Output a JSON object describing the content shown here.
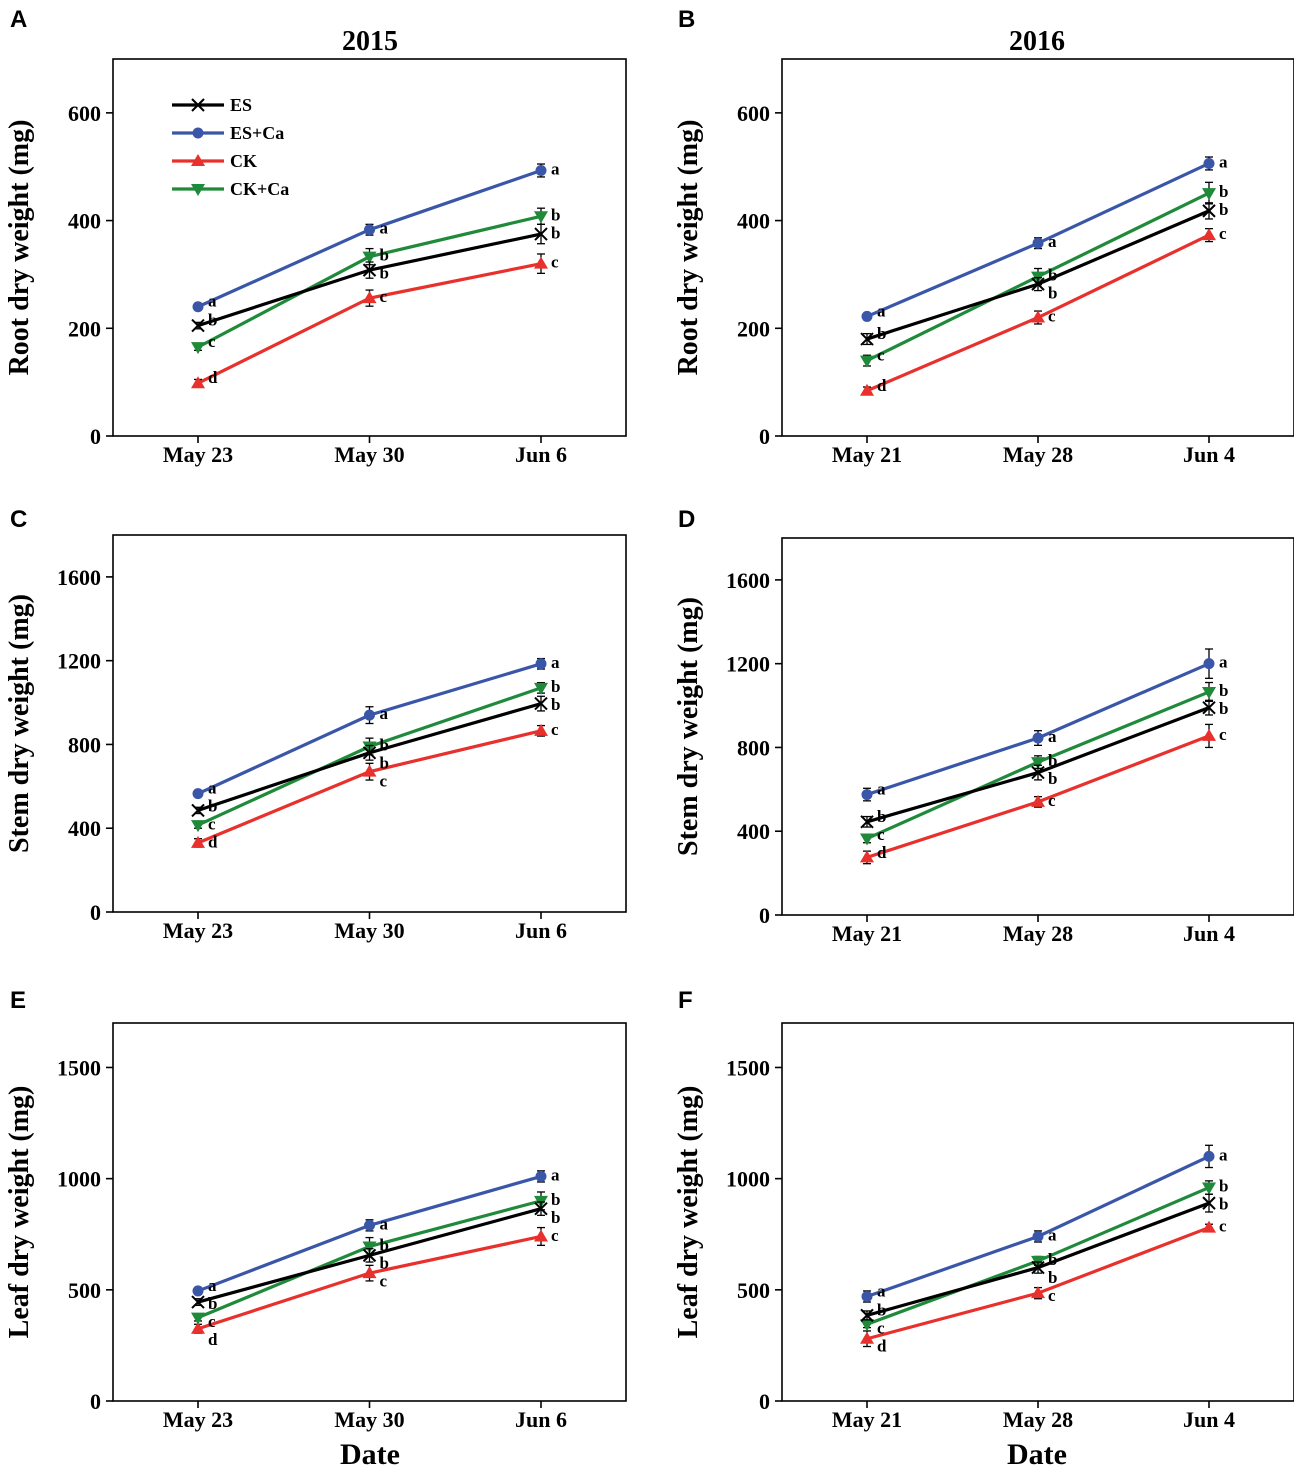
{
  "figure": {
    "year_titles": [
      "2015",
      "2016"
    ],
    "xlabel": "Date"
  },
  "legend": [
    {
      "label": "ES",
      "color": "#000000",
      "marker": "x"
    },
    {
      "label": "ES+Ca",
      "color": "#3a56a8",
      "marker": "circle"
    },
    {
      "label": "CK",
      "color": "#e8302c",
      "marker": "triangle-up"
    },
    {
      "label": "CK+Ca",
      "color": "#1e8a3a",
      "marker": "triangle-down"
    }
  ],
  "chart_data": [
    {
      "panel": "A",
      "type": "line",
      "title": "2015",
      "ylabel": "Root dry weight (mg)",
      "xlabel": "",
      "categories": [
        "May 23",
        "May 30",
        "Jun 6"
      ],
      "ylim": [
        0,
        700
      ],
      "yticks": [
        0,
        200,
        400,
        600
      ],
      "series": [
        {
          "name": "ES",
          "values": [
            205,
            308,
            375
          ],
          "errors": [
            6,
            15,
            18
          ],
          "letters": [
            "b",
            "b",
            "b"
          ]
        },
        {
          "name": "ES+Ca",
          "values": [
            240,
            383,
            493
          ],
          "errors": [
            6,
            10,
            12
          ],
          "letters": [
            "a",
            "a",
            "a"
          ]
        },
        {
          "name": "CK",
          "values": [
            98,
            256,
            320
          ],
          "errors": [
            7,
            15,
            18
          ],
          "letters": [
            "d",
            "c",
            "c"
          ]
        },
        {
          "name": "CK+Ca",
          "values": [
            165,
            333,
            408
          ],
          "errors": [
            6,
            15,
            15
          ],
          "letters": [
            "c",
            "b",
            "b"
          ]
        }
      ]
    },
    {
      "panel": "B",
      "type": "line",
      "title": "2016",
      "ylabel": "Root dry weight (mg)",
      "xlabel": "",
      "categories": [
        "May 21",
        "May 28",
        "Jun 4"
      ],
      "ylim": [
        0,
        700
      ],
      "yticks": [
        0,
        200,
        400,
        600
      ],
      "series": [
        {
          "name": "ES",
          "values": [
            180,
            282,
            418
          ],
          "errors": [
            10,
            12,
            15
          ],
          "letters": [
            "b",
            "b",
            "b"
          ]
        },
        {
          "name": "ES+Ca",
          "values": [
            222,
            358,
            506
          ],
          "errors": [
            6,
            10,
            12
          ],
          "letters": [
            "a",
            "a",
            "a"
          ]
        },
        {
          "name": "CK",
          "values": [
            84,
            220,
            373
          ],
          "errors": [
            7,
            12,
            12
          ],
          "letters": [
            "d",
            "c",
            "c"
          ]
        },
        {
          "name": "CK+Ca",
          "values": [
            140,
            296,
            451
          ],
          "errors": [
            10,
            15,
            20
          ],
          "letters": [
            "c",
            "b",
            "b"
          ]
        }
      ]
    },
    {
      "panel": "C",
      "type": "line",
      "title": "",
      "ylabel": "Stem dry weight (mg)",
      "xlabel": "",
      "categories": [
        "May 23",
        "May 30",
        "Jun 6"
      ],
      "ylim": [
        0,
        1800
      ],
      "yticks": [
        0,
        400,
        800,
        1200,
        1600
      ],
      "series": [
        {
          "name": "ES",
          "values": [
            485,
            760,
            995
          ],
          "errors": [
            15,
            35,
            35
          ],
          "letters": [
            "b",
            "b",
            "b"
          ]
        },
        {
          "name": "ES+Ca",
          "values": [
            565,
            940,
            1185
          ],
          "errors": [
            15,
            40,
            25
          ],
          "letters": [
            "a",
            "a",
            "a"
          ]
        },
        {
          "name": "CK",
          "values": [
            330,
            670,
            865
          ],
          "errors": [
            20,
            40,
            25
          ],
          "letters": [
            "d",
            "c",
            "c"
          ]
        },
        {
          "name": "CK+Ca",
          "values": [
            415,
            790,
            1070
          ],
          "errors": [
            15,
            40,
            25
          ],
          "letters": [
            "c",
            "b",
            "b"
          ]
        }
      ]
    },
    {
      "panel": "D",
      "type": "line",
      "title": "",
      "ylabel": "Stem dry weight (mg)",
      "xlabel": "",
      "categories": [
        "May 21",
        "May 28",
        "Jun 4"
      ],
      "ylim": [
        0,
        1800
      ],
      "yticks": [
        0,
        400,
        800,
        1200,
        1600
      ],
      "series": [
        {
          "name": "ES",
          "values": [
            445,
            680,
            990
          ],
          "errors": [
            25,
            35,
            35
          ],
          "letters": [
            "b",
            "b",
            "b"
          ]
        },
        {
          "name": "ES+Ca",
          "values": [
            575,
            845,
            1200
          ],
          "errors": [
            30,
            35,
            70
          ],
          "letters": [
            "a",
            "a",
            "a"
          ]
        },
        {
          "name": "CK",
          "values": [
            275,
            540,
            855
          ],
          "errors": [
            30,
            25,
            55
          ],
          "letters": [
            "d",
            "c",
            "c"
          ]
        },
        {
          "name": "CK+Ca",
          "values": [
            365,
            730,
            1065
          ],
          "errors": [
            20,
            30,
            45
          ],
          "letters": [
            "c",
            "b",
            "b"
          ]
        }
      ]
    },
    {
      "panel": "E",
      "type": "line",
      "title": "",
      "ylabel": "Leaf dry weight (mg)",
      "xlabel": "Date",
      "categories": [
        "May 23",
        "May 30",
        "Jun 6"
      ],
      "ylim": [
        0,
        1700
      ],
      "yticks": [
        0,
        500,
        1000,
        1500
      ],
      "series": [
        {
          "name": "ES",
          "values": [
            445,
            655,
            865
          ],
          "errors": [
            15,
            30,
            30
          ],
          "letters": [
            "b",
            "b",
            "b"
          ]
        },
        {
          "name": "ES+Ca",
          "values": [
            495,
            790,
            1010
          ],
          "errors": [
            15,
            25,
            25
          ],
          "letters": [
            "a",
            "a",
            "a"
          ]
        },
        {
          "name": "CK",
          "values": [
            325,
            575,
            740
          ],
          "errors": [
            20,
            35,
            40
          ],
          "letters": [
            "d",
            "c",
            "c"
          ]
        },
        {
          "name": "CK+Ca",
          "values": [
            375,
            695,
            900
          ],
          "errors": [
            15,
            40,
            40
          ],
          "letters": [
            "c",
            "b",
            "b"
          ]
        }
      ]
    },
    {
      "panel": "F",
      "type": "line",
      "title": "",
      "ylabel": "Leaf dry weight (mg)",
      "xlabel": "Date",
      "categories": [
        "May 21",
        "May 28",
        "Jun 4"
      ],
      "ylim": [
        0,
        1700
      ],
      "yticks": [
        0,
        500,
        1000,
        1500
      ],
      "series": [
        {
          "name": "ES",
          "values": [
            385,
            600,
            890
          ],
          "errors": [
            20,
            25,
            40
          ],
          "letters": [
            "b",
            "b",
            "b"
          ]
        },
        {
          "name": "ES+Ca",
          "values": [
            470,
            740,
            1100
          ],
          "errors": [
            25,
            25,
            50
          ],
          "letters": [
            "a",
            "a",
            "a"
          ]
        },
        {
          "name": "CK",
          "values": [
            280,
            485,
            780
          ],
          "errors": [
            35,
            25,
            15
          ],
          "letters": [
            "d",
            "c",
            "c"
          ]
        },
        {
          "name": "CK+Ca",
          "values": [
            345,
            630,
            960
          ],
          "errors": [
            15,
            20,
            30
          ],
          "letters": [
            "c",
            "b",
            "b"
          ]
        }
      ]
    }
  ]
}
